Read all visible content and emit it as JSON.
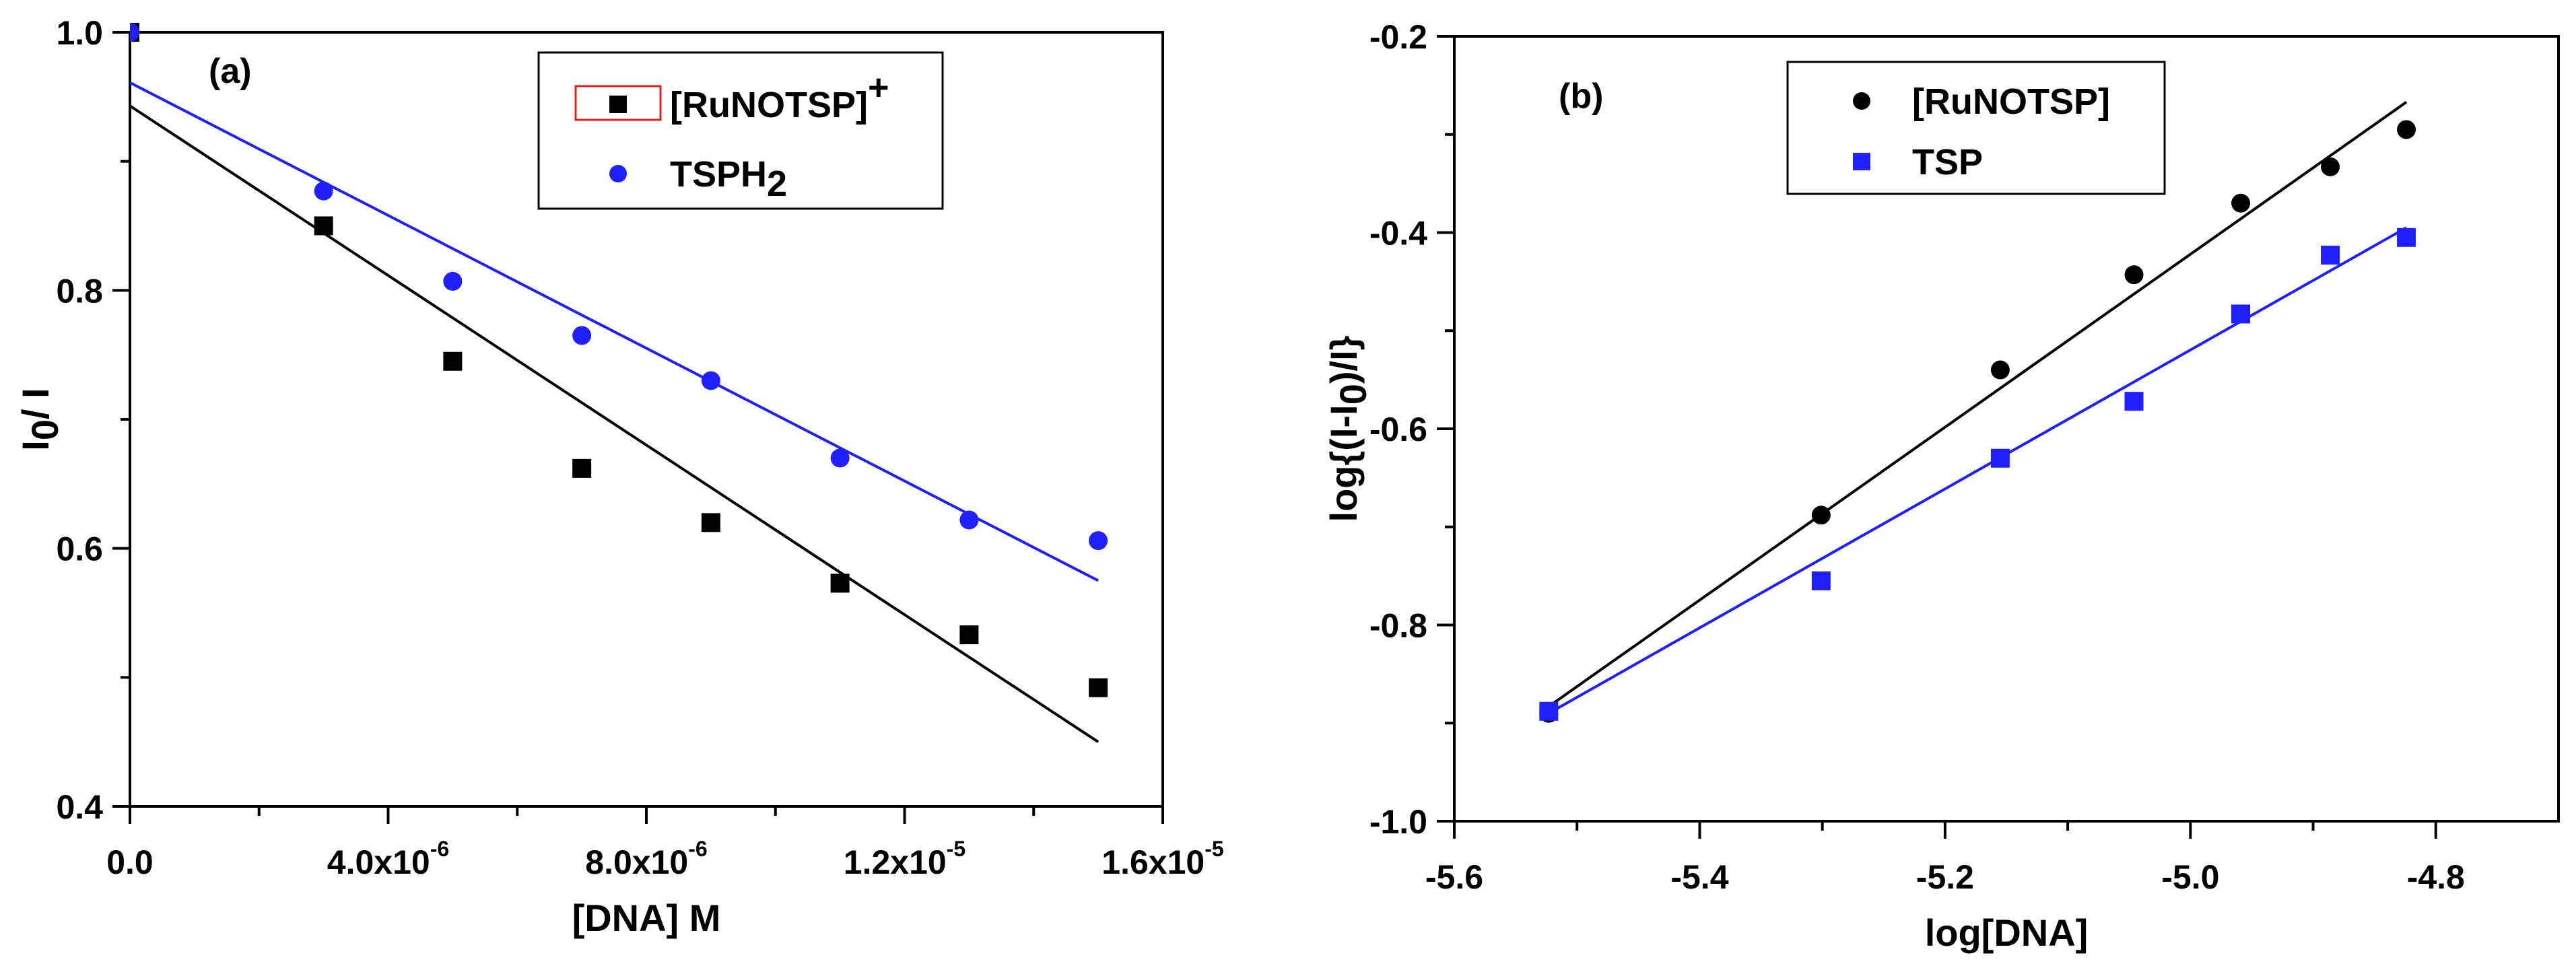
{
  "chart_data": [
    {
      "type": "scatter",
      "panel": "(a)",
      "xlabel": "[DNA] M",
      "ylabel_main": "I",
      "ylabel_sub": "0",
      "ylabel_rest": "/ I",
      "xlim": [
        0,
        1.6e-05
      ],
      "ylim": [
        0.4,
        1.0
      ],
      "x_ticks": [
        {
          "value": 0,
          "base": "0.0",
          "exp": ""
        },
        {
          "value": 4e-06,
          "base": "4.0x10",
          "exp": "-6"
        },
        {
          "value": 8e-06,
          "base": "8.0x10",
          "exp": "-6"
        },
        {
          "value": 1.2e-05,
          "base": "1.2x10",
          "exp": "-5"
        },
        {
          "value": 1.6e-05,
          "base": "1.6x10",
          "exp": "-5"
        }
      ],
      "y_ticks": [
        {
          "value": 0.4,
          "label": "0.4"
        },
        {
          "value": 0.6,
          "label": "0.6"
        },
        {
          "value": 0.8,
          "label": "0.8"
        },
        {
          "value": 1.0,
          "label": "1.0"
        }
      ],
      "legend_placement": "top-right",
      "series": [
        {
          "name": "[RuNOTSP]",
          "name_sup": "+",
          "marker": "square",
          "color": "#000000",
          "x": [
            0,
            3e-06,
            5e-06,
            7e-06,
            9e-06,
            1.1e-05,
            1.3e-05,
            1.5e-05
          ],
          "y": [
            1.0,
            0.85,
            0.745,
            0.662,
            0.62,
            0.573,
            0.533,
            0.492
          ],
          "fit": {
            "x": [
              0,
              1.5e-05
            ],
            "y": [
              0.943,
              0.45
            ]
          }
        },
        {
          "name": "TSPH",
          "name_sub": "2",
          "marker": "circle",
          "color": "#1f1fff",
          "x": [
            0,
            3e-06,
            5e-06,
            7e-06,
            9e-06,
            1.1e-05,
            1.3e-05,
            1.5e-05
          ],
          "y": [
            1.0,
            0.877,
            0.807,
            0.765,
            0.73,
            0.67,
            0.622,
            0.606
          ],
          "fit": {
            "x": [
              0,
              1.5e-05
            ],
            "y": [
              0.961,
              0.575
            ]
          }
        }
      ]
    },
    {
      "type": "scatter",
      "panel": "(b)",
      "xlabel": "log[DNA]",
      "ylabel_main": "log{(I-I",
      "ylabel_sub": "0",
      "ylabel_rest": ")/I}",
      "xlim": [
        -5.6,
        -4.7
      ],
      "ylim": [
        -1.0,
        -0.2
      ],
      "x_ticks": [
        {
          "value": -5.6,
          "label": "-5.6"
        },
        {
          "value": -5.4,
          "label": "-5.4"
        },
        {
          "value": -5.2,
          "label": "-5.2"
        },
        {
          "value": -5.0,
          "label": "-5.0"
        },
        {
          "value": -4.8,
          "label": "-4.8"
        }
      ],
      "y_ticks": [
        {
          "value": -1.0,
          "label": "-1.0"
        },
        {
          "value": -0.8,
          "label": "-0.8"
        },
        {
          "value": -0.6,
          "label": "-0.6"
        },
        {
          "value": -0.4,
          "label": "-0.4"
        },
        {
          "value": -0.2,
          "label": "-0.2"
        }
      ],
      "legend_placement": "top-left",
      "series": [
        {
          "name": "[RuNOTSP]",
          "marker": "circle",
          "color": "#000000",
          "x": [
            -5.523,
            -5.301,
            -5.155,
            -5.046,
            -4.959,
            -4.886,
            -4.824
          ],
          "y": [
            -0.89,
            -0.688,
            -0.54,
            -0.443,
            -0.37,
            -0.333,
            -0.295
          ],
          "fit": {
            "x": [
              -5.523,
              -4.824
            ],
            "y": [
              -0.883,
              -0.267
            ]
          }
        },
        {
          "name": "TSP",
          "marker": "square",
          "color": "#1f1fff",
          "x": [
            -5.523,
            -5.301,
            -5.155,
            -5.046,
            -4.959,
            -4.886,
            -4.824
          ],
          "y": [
            -0.888,
            -0.755,
            -0.63,
            -0.572,
            -0.483,
            -0.423,
            -0.405
          ],
          "fit": {
            "x": [
              -5.523,
              -4.824
            ],
            "y": [
              -0.89,
              -0.395
            ]
          }
        }
      ]
    }
  ]
}
